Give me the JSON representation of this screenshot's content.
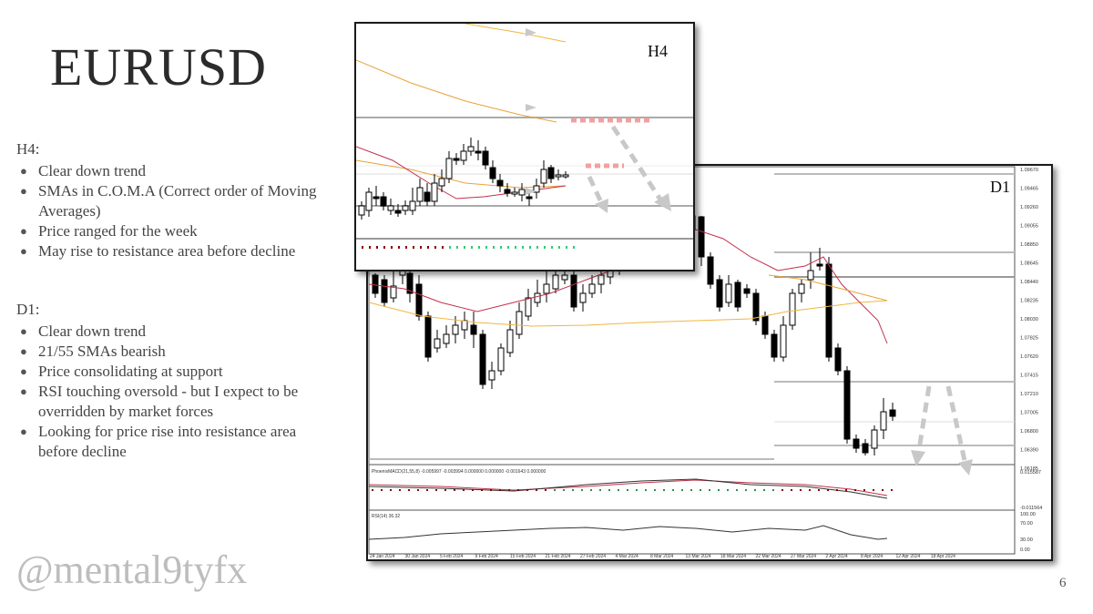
{
  "title": "EURUSD",
  "h4": {
    "heading": "H4:",
    "bullets": [
      "Clear down trend",
      "SMAs in C.O.M.A (Correct order of Moving Averages)",
      "Price ranged for the week",
      "May rise to resistance area before decline"
    ]
  },
  "d1": {
    "heading": "D1:",
    "bullets": [
      "Clear down trend",
      "21/55 SMAs bearish",
      "Price consolidating at support",
      "RSI touching oversold - but I expect to be overridden by market forces",
      "Looking for price rise into resistance area before decline"
    ]
  },
  "handle": "@mental9tyfx",
  "page_number": "6",
  "chart_h4": {
    "label": "H4"
  },
  "chart_d1": {
    "label": "D1",
    "price_scale": [
      "1.09670",
      "1.09465",
      "1.09260",
      "1.09055",
      "1.08850",
      "1.08645",
      "1.08440",
      "1.08235",
      "1.08030",
      "1.07825",
      "1.07620",
      "1.07415",
      "1.07210",
      "1.07005",
      "1.06800",
      "1.06390",
      "1.06185"
    ],
    "macd_label": "PhoenixMACD(21,55,8) -0.005997 -0.003994 0.000000 0.000000 -0.001643 0.000000",
    "macd_scale": [
      "0.015587",
      "-0.011564"
    ],
    "rsi_label": "RSI(14) 36.32",
    "rsi_scale": [
      "100.00",
      "70.00",
      "30.00",
      "0.00"
    ],
    "dates": [
      "24 Jan 2024",
      "30 Jan 2024",
      "5 Feb 2024",
      "9 Feb 2024",
      "15 Feb 2024",
      "21 Feb 2024",
      "27 Feb 2024",
      "4 Mar 2024",
      "8 Mar 2024",
      "13 Mar 2024",
      "18 Mar 2024",
      "22 Mar 2024",
      "27 Mar 2024",
      "2 Apr 2024",
      "8 Apr 2024",
      "12 Apr 2024",
      "18 Apr 2024"
    ]
  },
  "colors": {
    "bull": "#ffffff",
    "bear": "#000000",
    "sma_fast": "#c0304a",
    "sma_slow": "#e8a33a",
    "sma_mid": "#f2b640",
    "resistance": "#f2a0a0",
    "arrow": "#c8c8c8"
  }
}
